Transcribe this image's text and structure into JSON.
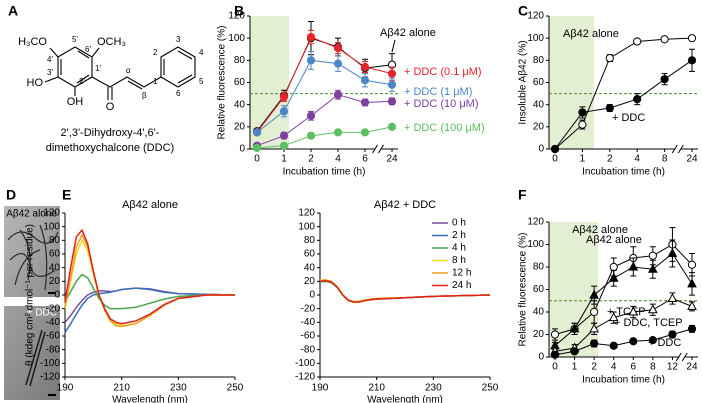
{
  "panel_labels": [
    "A",
    "B",
    "C",
    "D",
    "E",
    "F"
  ],
  "structure": {
    "labels": [
      "H₃CO",
      "OCH₃",
      "HO",
      "OH",
      "O",
      "5'",
      "6'",
      "1'",
      "2'",
      "3'",
      "4'",
      "α",
      "β",
      "1",
      "2",
      "3",
      "4",
      "5",
      "6"
    ],
    "caption": [
      "2',3'-Dihydroxy-4',6'-",
      "dimethoxychalcone (DDC)"
    ]
  },
  "micrographs": {
    "labels": [
      "Aβ42 alone",
      "+ DDC"
    ]
  },
  "chart_data": [
    {
      "type": "line",
      "categories": [
        "0",
        "1",
        "2",
        "4",
        "6",
        "24"
      ],
      "xlabel": "Incubation time (h)",
      "ylabel": "Relative fluorescence (%)",
      "ylim": [
        0,
        120
      ],
      "yticks": [
        0,
        20,
        40,
        60,
        80,
        100,
        120
      ],
      "hline": 50,
      "series": [
        {
          "name": "Aβ42 alone",
          "color": "#000000",
          "marker": "circle",
          "filled": false,
          "values": [
            16,
            48,
            100,
            92,
            73,
            76
          ],
          "errors": [
            2,
            5,
            15,
            8,
            8,
            10
          ]
        },
        {
          "name": "+ DDC (0.1 μM)",
          "color": "#e8242a",
          "marker": "circle",
          "filled": true,
          "values": [
            15,
            47,
            101,
            91,
            74,
            68
          ],
          "errors": [
            2,
            4,
            6,
            5,
            5,
            6
          ]
        },
        {
          "name": "+ DDC (1 μM)",
          "color": "#4a86c8",
          "marker": "circle",
          "filled": true,
          "values": [
            15,
            34,
            80,
            77,
            62,
            58
          ],
          "errors": [
            2,
            5,
            8,
            7,
            6,
            6
          ]
        },
        {
          "name": "+ DDC (10 μM)",
          "color": "#8040a0",
          "marker": "circle",
          "filled": true,
          "values": [
            3,
            12,
            30,
            49,
            42,
            43
          ],
          "errors": [
            1,
            3,
            4,
            4,
            3,
            3
          ]
        },
        {
          "name": "+ DDC (100 μM)",
          "color": "#5cbf60",
          "marker": "circle",
          "filled": true,
          "values": [
            1,
            3,
            12,
            15,
            15,
            20
          ],
          "errors": [
            1,
            1,
            2,
            2,
            2,
            2
          ]
        }
      ]
    },
    {
      "type": "line",
      "categories": [
        "0",
        "1",
        "2",
        "4",
        "8",
        "24"
      ],
      "xlabel": "Incubation time (h)",
      "ylabel": "Insoluble Aβ42 (%)",
      "ylim": [
        0,
        120
      ],
      "yticks": [
        0,
        20,
        40,
        60,
        80,
        100,
        120
      ],
      "hline": 50,
      "series": [
        {
          "name": "Aβ42 alone",
          "color": "#000000",
          "marker": "circle",
          "filled": false,
          "values": [
            0,
            22,
            82,
            97,
            99,
            100
          ],
          "errors": [
            0,
            4,
            3,
            1,
            1,
            1
          ]
        },
        {
          "name": "+ DDC",
          "color": "#000000",
          "marker": "circle",
          "filled": true,
          "values": [
            0,
            33,
            37,
            45,
            63,
            80
          ],
          "errors": [
            0,
            5,
            3,
            5,
            5,
            10
          ]
        }
      ]
    },
    {
      "type": "line",
      "title": "Aβ42 alone",
      "xlabel": "Wavelength (nm)",
      "ylabel": "θ (kdeg cm² dmol⁻¹ per residue)",
      "x": [
        190,
        192,
        194,
        196,
        198,
        200,
        202,
        204,
        206,
        208,
        210,
        215,
        220,
        225,
        230,
        240,
        250
      ],
      "xlim": [
        190,
        250
      ],
      "xticks": [
        190,
        210,
        230,
        250
      ],
      "ylim": [
        -120,
        120
      ],
      "yticks": [
        -120,
        -100,
        -80,
        -60,
        -40,
        -20,
        0,
        20,
        40,
        60,
        80,
        100,
        120
      ],
      "series": [
        {
          "color": "#7b4fa0",
          "values": [
            -40,
            -30,
            -18,
            -8,
            0,
            4,
            6,
            6,
            5,
            6,
            8,
            10,
            9,
            5,
            2,
            1,
            0
          ]
        },
        {
          "color": "#3a6fb5",
          "values": [
            -55,
            -42,
            -28,
            -15,
            -5,
            0,
            2,
            3,
            4,
            6,
            8,
            10,
            8,
            4,
            2,
            1,
            0
          ]
        },
        {
          "color": "#4aa54a",
          "values": [
            -10,
            5,
            20,
            30,
            25,
            10,
            -5,
            -15,
            -20,
            -20,
            -20,
            -18,
            -12,
            -6,
            -2,
            0,
            0
          ]
        },
        {
          "color": "#f0e020",
          "values": [
            -15,
            20,
            60,
            80,
            65,
            30,
            0,
            -20,
            -35,
            -42,
            -45,
            -42,
            -30,
            -15,
            -5,
            0,
            0
          ]
        },
        {
          "color": "#f0a020",
          "values": [
            -20,
            25,
            70,
            88,
            70,
            35,
            0,
            -22,
            -38,
            -45,
            -46,
            -42,
            -30,
            -15,
            -5,
            0,
            0
          ]
        },
        {
          "color": "#e0201c",
          "values": [
            -10,
            40,
            85,
            95,
            75,
            35,
            0,
            -20,
            -35,
            -40,
            -42,
            -38,
            -28,
            -14,
            -5,
            0,
            0
          ]
        }
      ]
    },
    {
      "type": "line",
      "title": "Aβ42 + DDC",
      "xlabel": "Wavelength (nm)",
      "legend": "upper right",
      "x": [
        190,
        192,
        194,
        196,
        198,
        200,
        202,
        204,
        206,
        208,
        210,
        215,
        220,
        225,
        230,
        240,
        250
      ],
      "xlim": [
        190,
        250
      ],
      "xticks": [
        190,
        210,
        230,
        250
      ],
      "ylim": [
        -120,
        120
      ],
      "yticks": [
        -120,
        -100,
        -80,
        -60,
        -40,
        -20,
        0,
        20,
        40,
        60,
        80,
        100,
        120
      ],
      "series": [
        {
          "name": "0 h",
          "color": "#7b4fa0",
          "values": [
            20,
            20,
            18,
            12,
            0,
            -8,
            -10,
            -9,
            -7,
            -6,
            -5,
            -5,
            -4,
            -3,
            -2,
            -1,
            0
          ]
        },
        {
          "name": "2 h",
          "color": "#3a6fb5",
          "values": [
            21,
            21,
            19,
            12,
            1,
            -7,
            -10,
            -9,
            -8,
            -6,
            -5,
            -5,
            -4,
            -3,
            -2,
            -1,
            0
          ]
        },
        {
          "name": "4 h",
          "color": "#4aa54a",
          "values": [
            19,
            20,
            18,
            11,
            0,
            -8,
            -11,
            -10,
            -8,
            -7,
            -6,
            -5,
            -4,
            -3,
            -2,
            -1,
            0
          ]
        },
        {
          "name": "8 h",
          "color": "#f0e020",
          "values": [
            22,
            22,
            19,
            13,
            1,
            -7,
            -10,
            -9,
            -7,
            -6,
            -5,
            -4,
            -4,
            -3,
            -2,
            -1,
            0
          ]
        },
        {
          "name": "12 h",
          "color": "#f0a020",
          "values": [
            21,
            22,
            20,
            12,
            0,
            -8,
            -11,
            -10,
            -8,
            -6,
            -5,
            -5,
            -4,
            -3,
            -2,
            -1,
            0
          ]
        },
        {
          "name": "24 h",
          "color": "#e0201c",
          "values": [
            20,
            21,
            19,
            12,
            0,
            -8,
            -10,
            -10,
            -8,
            -7,
            -6,
            -5,
            -4,
            -3,
            -2,
            -1,
            0
          ]
        }
      ]
    },
    {
      "type": "line",
      "categories": [
        "0",
        "1",
        "2",
        "4",
        "6",
        "8",
        "12",
        "24"
      ],
      "xlabel": "Incubation time (h)",
      "ylabel": "Relative fluorescence (%)",
      "title": "Aβ42 alone",
      "ylim": [
        0,
        120
      ],
      "yticks": [
        0,
        20,
        40,
        60,
        80,
        100,
        120
      ],
      "hline": 50,
      "series": [
        {
          "name": "Aβ42 alone",
          "color": "#000000",
          "marker": "circle",
          "filled": false,
          "values": [
            20,
            25,
            40,
            80,
            88,
            90,
            100,
            82
          ],
          "errors": [
            5,
            5,
            10,
            8,
            10,
            8,
            15,
            10
          ]
        },
        {
          "name": "+ TCEP",
          "color": "#000000",
          "marker": "triangle",
          "filled": true,
          "values": [
            10,
            25,
            55,
            70,
            80,
            78,
            92,
            65
          ],
          "errors": [
            3,
            5,
            8,
            7,
            8,
            8,
            12,
            10
          ]
        },
        {
          "name": "+ DDC, TCEP",
          "color": "#000000",
          "marker": "triangle",
          "filled": false,
          "values": [
            5,
            8,
            25,
            35,
            40,
            42,
            52,
            45
          ],
          "errors": [
            2,
            3,
            5,
            5,
            5,
            5,
            5,
            4
          ]
        },
        {
          "name": "+ DDC",
          "color": "#000000",
          "marker": "circle",
          "filled": true,
          "values": [
            2,
            5,
            12,
            10,
            14,
            15,
            20,
            25
          ],
          "errors": [
            1,
            2,
            3,
            2,
            2,
            2,
            3,
            3
          ]
        }
      ]
    }
  ]
}
